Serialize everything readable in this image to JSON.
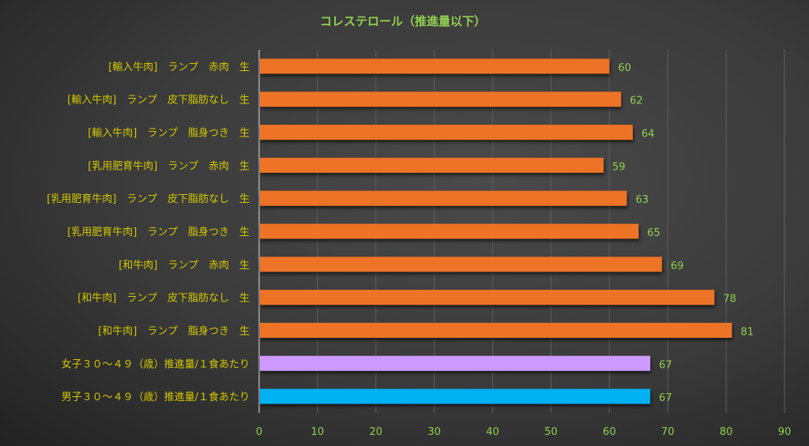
{
  "chart_data": {
    "type": "bar",
    "orientation": "horizontal",
    "title": "コレステロール（推進量以下）",
    "categories": [
      "[輸入牛肉]　ランプ　赤肉　生",
      "[輸入牛肉]　ランプ　皮下脂肪なし　生",
      "[輸入牛肉]　ランプ　脂身つき　生",
      "[乳用肥育牛肉]　ランプ　赤肉　生",
      "[乳用肥育牛肉]　ランプ　皮下脂肪なし　生",
      "[乳用肥育牛肉]　ランプ　脂身つき　生",
      "[和牛肉]　ランプ　赤肉　生",
      "[和牛肉]　ランプ　皮下脂肪なし　生",
      "[和牛肉]　ランプ　脂身つき　生",
      "女子３０～４９（歳）推進量/１食あたり",
      "男子３０～４９（歳）推進量/１食あたり"
    ],
    "values": [
      60,
      62,
      64,
      59,
      63,
      65,
      69,
      78,
      81,
      67,
      67
    ],
    "colors": [
      "#ed7325",
      "#ed7325",
      "#ed7325",
      "#ed7325",
      "#ed7325",
      "#ed7325",
      "#ed7325",
      "#ed7325",
      "#ed7325",
      "#cc99ff",
      "#00b0f0"
    ],
    "xlim": [
      0,
      90
    ],
    "xticks": [
      0,
      10,
      20,
      30,
      40,
      50,
      60,
      70,
      80,
      90
    ],
    "xlabel": "",
    "ylabel": "",
    "grid": true,
    "title_color": "#92d050",
    "label_color": "#d4c800",
    "value_color": "#92d050"
  }
}
